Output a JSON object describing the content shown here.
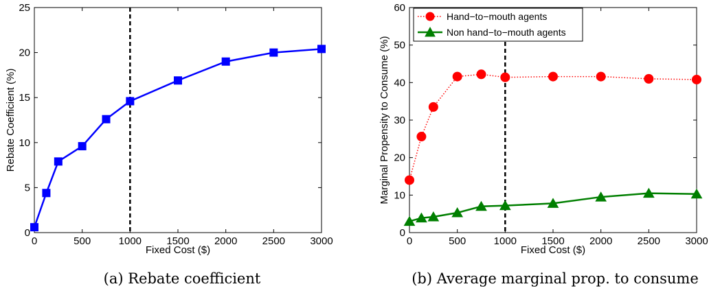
{
  "chart_data": [
    {
      "type": "line",
      "caption": "(a) Rebate coefficient",
      "xlabel": "Fixed Cost ($)",
      "ylabel": "Rebate Coefficient (%)",
      "xlim": [
        0,
        3000
      ],
      "ylim": [
        0,
        25
      ],
      "xticks": [
        0,
        500,
        1000,
        1500,
        2000,
        2500,
        3000
      ],
      "yticks": [
        0,
        5,
        10,
        15,
        20,
        25
      ],
      "vline": 1000,
      "grid": false,
      "series": [
        {
          "color": "#0000ff",
          "marker": "square",
          "line": "solid",
          "x": [
            0,
            125,
            250,
            500,
            750,
            1000,
            1500,
            2000,
            2500,
            3000
          ],
          "y": [
            0.6,
            4.4,
            7.9,
            9.6,
            12.6,
            14.6,
            16.9,
            19.0,
            20.0,
            20.4
          ]
        }
      ]
    },
    {
      "type": "line",
      "caption": "(b) Average marginal prop. to consume",
      "xlabel": "Fixed Cost ($)",
      "ylabel": "Marginal Propensity to Consume (%)",
      "xlim": [
        0,
        3000
      ],
      "ylim": [
        0,
        60
      ],
      "xticks": [
        0,
        500,
        1000,
        1500,
        2000,
        2500,
        3000
      ],
      "yticks": [
        0,
        10,
        20,
        30,
        40,
        50,
        60
      ],
      "vline": 1000,
      "grid": false,
      "legend": "top-left",
      "series": [
        {
          "name": "Hand−to−mouth agents",
          "color": "#ff0000",
          "marker": "circle",
          "line": "dotted",
          "x": [
            0,
            125,
            250,
            500,
            750,
            1000,
            1500,
            2000,
            2500,
            3000
          ],
          "y": [
            14.0,
            25.6,
            33.5,
            41.6,
            42.2,
            41.4,
            41.6,
            41.6,
            41.0,
            40.8
          ]
        },
        {
          "name": "Non hand−to−mouth agents",
          "color": "#007f00",
          "marker": "triangle",
          "line": "solid",
          "x": [
            0,
            125,
            250,
            500,
            750,
            1000,
            1500,
            2000,
            2500,
            3000
          ],
          "y": [
            3.0,
            3.9,
            4.2,
            5.3,
            7.0,
            7.2,
            7.8,
            9.5,
            10.5,
            10.3
          ]
        }
      ]
    }
  ]
}
